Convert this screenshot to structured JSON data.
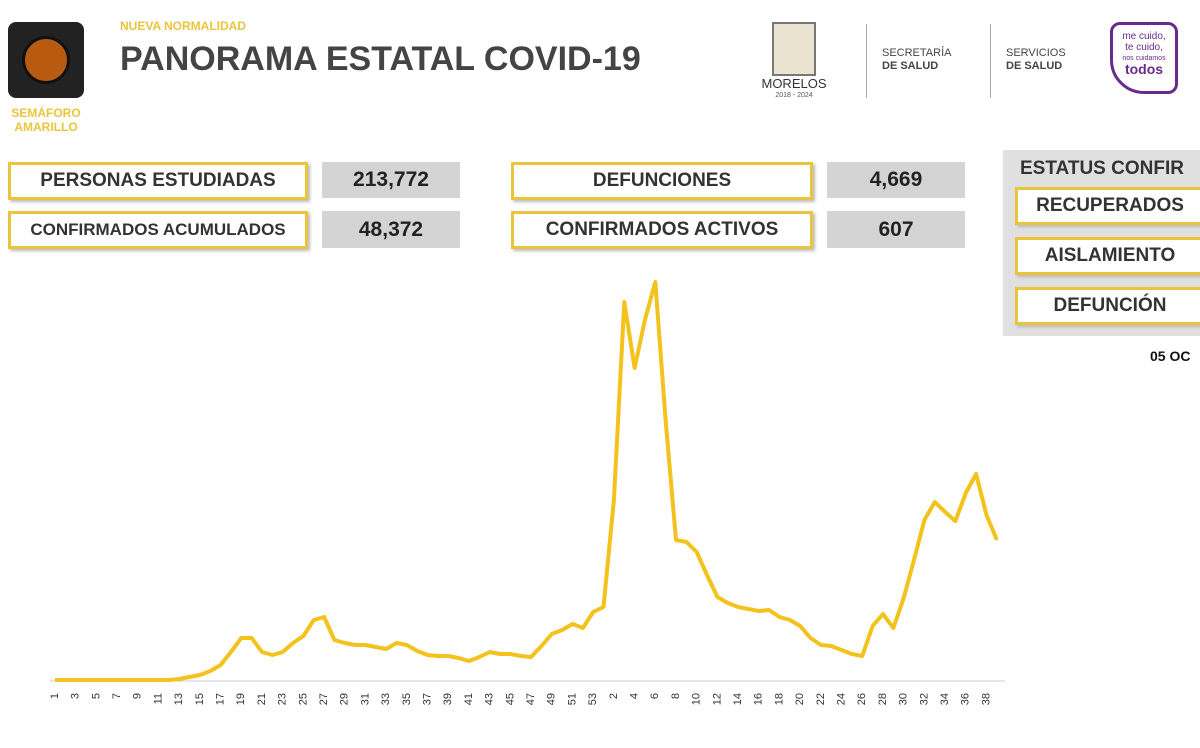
{
  "header": {
    "tag": "NUEVA NORMALIDAD",
    "title": "PANORAMA ESTATAL COVID-19",
    "semaforo": [
      "SEMÁFORO",
      "AMARILLO"
    ],
    "state": "MORELOS",
    "term": "2018 - 2024",
    "secretaria": [
      "SECRETARÍA",
      "DE SALUD"
    ],
    "servicios": [
      "SERVICIOS",
      "DE SALUD"
    ],
    "slogan": [
      "me cuido,",
      "te cuido,",
      "nos cuidamos",
      "todos"
    ]
  },
  "stats": [
    {
      "label": "PERSONAS ESTUDIADAS",
      "value": "213,772"
    },
    {
      "label": "CONFIRMADOS ACUMULADOS",
      "value": "48,372"
    },
    {
      "label": "DEFUNCIONES",
      "value": "4,669"
    },
    {
      "label": "CONFIRMADOS ACTIVOS",
      "value": "607"
    }
  ],
  "status": {
    "title": "ESTATUS CONFIR",
    "items": [
      "RECUPERADOS",
      "AISLAMIENTO",
      "DEFUNCIÓN"
    ],
    "date": "05 OC"
  },
  "chart_data": {
    "type": "line",
    "color": "#f3c21c",
    "categories": [
      "1",
      null,
      "3",
      null,
      "5",
      null,
      "7",
      null,
      "9",
      null,
      "11",
      null,
      "13",
      null,
      "15",
      null,
      "17",
      null,
      "19",
      null,
      "21",
      null,
      "23",
      null,
      "25",
      null,
      "27",
      null,
      "29",
      null,
      "31",
      null,
      "33",
      null,
      "35",
      null,
      "37",
      null,
      "39",
      null,
      "41",
      null,
      "43",
      null,
      "45",
      null,
      "47",
      null,
      "49",
      null,
      "51",
      null,
      "53",
      null,
      "2",
      null,
      "4",
      null,
      "6",
      null,
      "8",
      null,
      "10",
      null,
      "12",
      null,
      "14",
      null,
      "16",
      null,
      "18",
      null,
      "20",
      null,
      "22",
      null,
      "24",
      null,
      "26",
      null,
      "28",
      null,
      "30",
      null,
      "32",
      null,
      "34",
      null,
      "36",
      null,
      "38",
      null
    ],
    "values": [
      0,
      0,
      0,
      0,
      0,
      0,
      0,
      0,
      0,
      0,
      0,
      0,
      1,
      3,
      5,
      9,
      15,
      28,
      42,
      42,
      28,
      25,
      28,
      37,
      44,
      60,
      63,
      40,
      37,
      35,
      35,
      33,
      31,
      37,
      35,
      29,
      25,
      24,
      24,
      22,
      19,
      23,
      28,
      26,
      26,
      24,
      23,
      34,
      46,
      50,
      56,
      52,
      68,
      73,
      180,
      378,
      312,
      360,
      398,
      260,
      140,
      138,
      128,
      105,
      83,
      77,
      73,
      71,
      69,
      70,
      63,
      60,
      54,
      42,
      35,
      34,
      30,
      26,
      24,
      54,
      66,
      52,
      82,
      120,
      160,
      178,
      168,
      159,
      187,
      206,
      165,
      140
    ],
    "ylim": [
      0,
      410
    ]
  }
}
